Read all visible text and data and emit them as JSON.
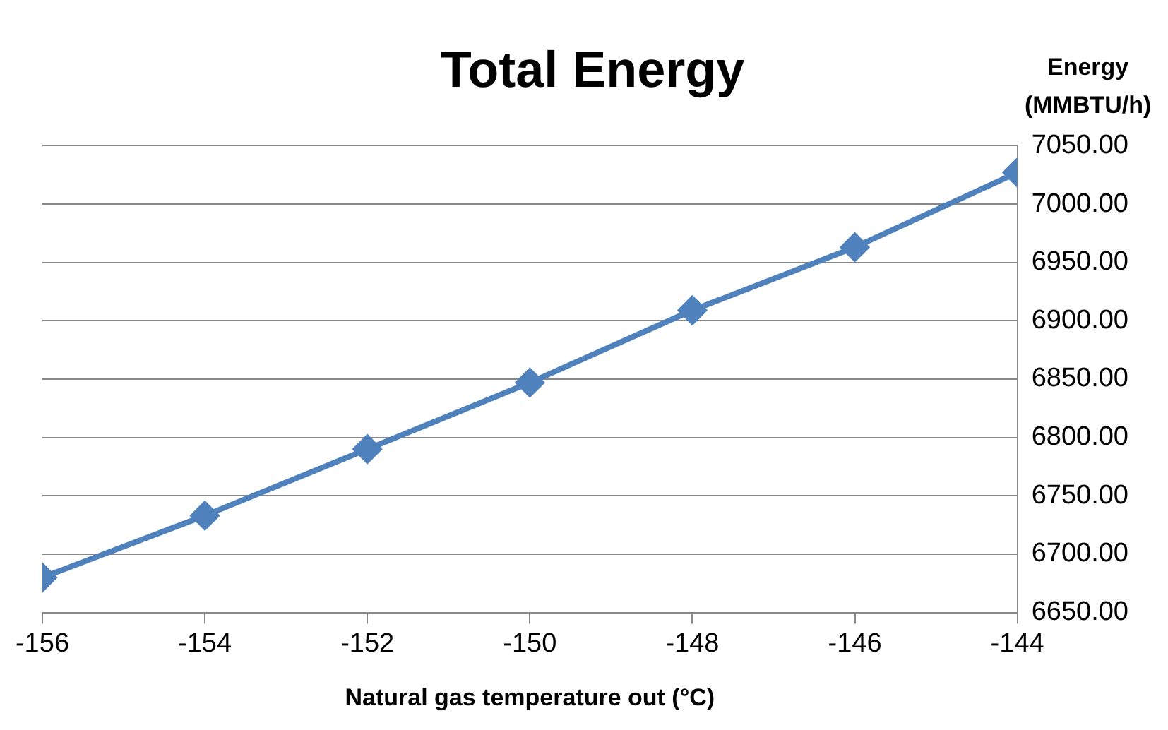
{
  "chart_data": {
    "type": "line",
    "title": "Total Energy",
    "xlabel": "Natural gas temperature out (°C)",
    "ylabel": "Energy (MMBTU/h)",
    "x": [
      -156,
      -154,
      -152,
      -150,
      -148,
      -146,
      -144
    ],
    "series": [
      {
        "color": "#4f81bd",
        "values": [
          6680,
          6733,
          6790,
          6847,
          6909,
          6963,
          7027
        ]
      }
    ],
    "xlim": [
      -156,
      -144
    ],
    "xticks": [
      -156,
      -154,
      -152,
      -150,
      -148,
      -146,
      -144
    ],
    "ylim": [
      6650,
      7050
    ],
    "yticks": [
      {
        "value": 6650,
        "label": "6650.00"
      },
      {
        "value": 6700,
        "label": "6700.00"
      },
      {
        "value": 6750,
        "label": "6750.00"
      },
      {
        "value": 6800,
        "label": "6800.00"
      },
      {
        "value": 6850,
        "label": "6850.00"
      },
      {
        "value": 6900,
        "label": "6900.00"
      },
      {
        "value": 6950,
        "label": "6950.00"
      },
      {
        "value": 7000,
        "label": "7000.00"
      },
      {
        "value": 7050,
        "label": "7050.00"
      }
    ],
    "grid": "y",
    "legend": false,
    "marker": "diamond",
    "line_style": "solid"
  }
}
